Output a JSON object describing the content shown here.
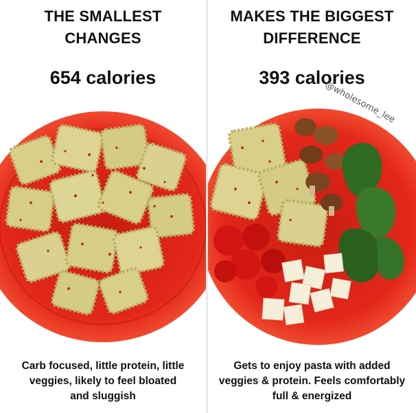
{
  "left_panel": {
    "headline_lines": [
      "THE SMALLEST",
      "CHANGES"
    ],
    "calories": "654 calories",
    "caption_lines": [
      "Carb focused, little protein, little",
      "veggies, likely to feel bloated",
      "and sluggish"
    ]
  },
  "right_panel": {
    "headline_lines": [
      "MAKES THE BIGGEST",
      "DIFFERENCE"
    ],
    "calories": "393 calories",
    "caption_lines": [
      "Gets to enjoy pasta with added",
      "veggies & protein. Feels comfortably",
      "full & energized"
    ]
  },
  "watermark": "@wholesome_lee",
  "colors": {
    "plate": "#e3271a",
    "plate_rim": "#f04a2e",
    "ravioli": "#d8cf8a",
    "ravioli_shadow": "#b9ae63",
    "chili_flakes": "#b5341d",
    "mushroom": "#8a5228",
    "pepper": "#2f6b22",
    "tomato": "#d21512",
    "cheese": "#f4eeda"
  }
}
